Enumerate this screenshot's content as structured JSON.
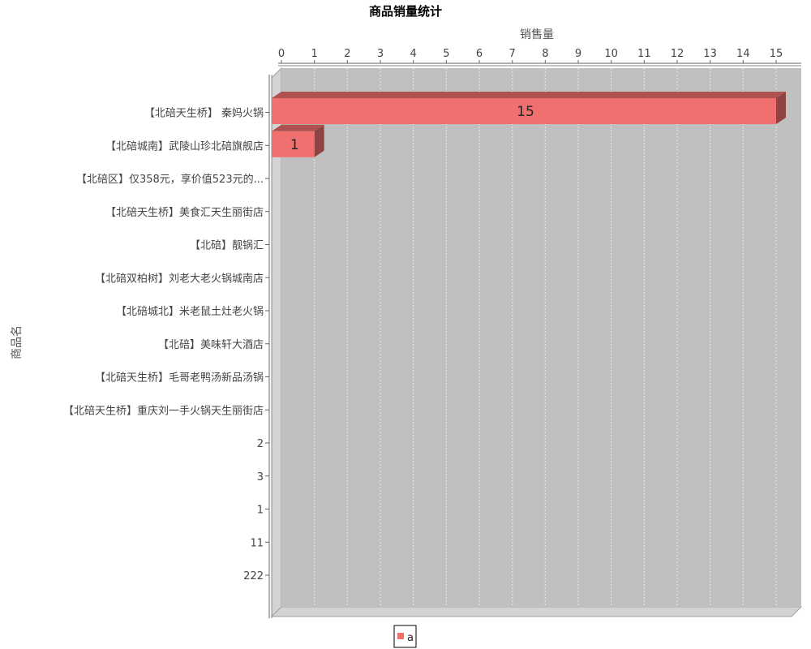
{
  "chart_data": {
    "type": "bar",
    "orientation": "horizontal",
    "title": "商品销量统计",
    "xlabel": "销售量",
    "ylabel": "商品名",
    "xlim": [
      0,
      15
    ],
    "x_ticks": [
      "0",
      "1",
      "2",
      "3",
      "4",
      "5",
      "6",
      "7",
      "8",
      "9",
      "10",
      "11",
      "12",
      "13",
      "14",
      "15"
    ],
    "categories": [
      "【北碚天生桥】 秦妈火锅",
      "【北碚城南】武陵山珍北碚旗舰店",
      "【北碚区】仅358元，享价值523元的...",
      "【北碚天生桥】美食汇天生丽街店",
      "【北碚】靓锅汇",
      "【北碚双柏树】刘老大老火锅城南店",
      "【北碚城北】米老鼠土灶老火锅",
      "【北碚】美味轩大酒店",
      "【北碚天生桥】毛哥老鸭汤新品汤锅",
      "【北碚天生桥】重庆刘一手火锅天生丽街店",
      "2",
      "3",
      "1",
      "11",
      "222"
    ],
    "series": [
      {
        "name": "a",
        "color": "#f07070",
        "values": [
          15,
          1,
          0,
          0,
          0,
          0,
          0,
          0,
          0,
          0,
          0,
          0,
          0,
          0,
          0
        ],
        "data_labels": [
          "15",
          "1",
          "",
          "",
          "",
          "",
          "",
          "",
          "",
          "",
          "",
          "",
          "",
          "",
          ""
        ]
      }
    ],
    "legend_position": "bottom",
    "grid": true,
    "x_axis_position": "top",
    "style": "3d",
    "plot_background": "#c0c0c0"
  }
}
